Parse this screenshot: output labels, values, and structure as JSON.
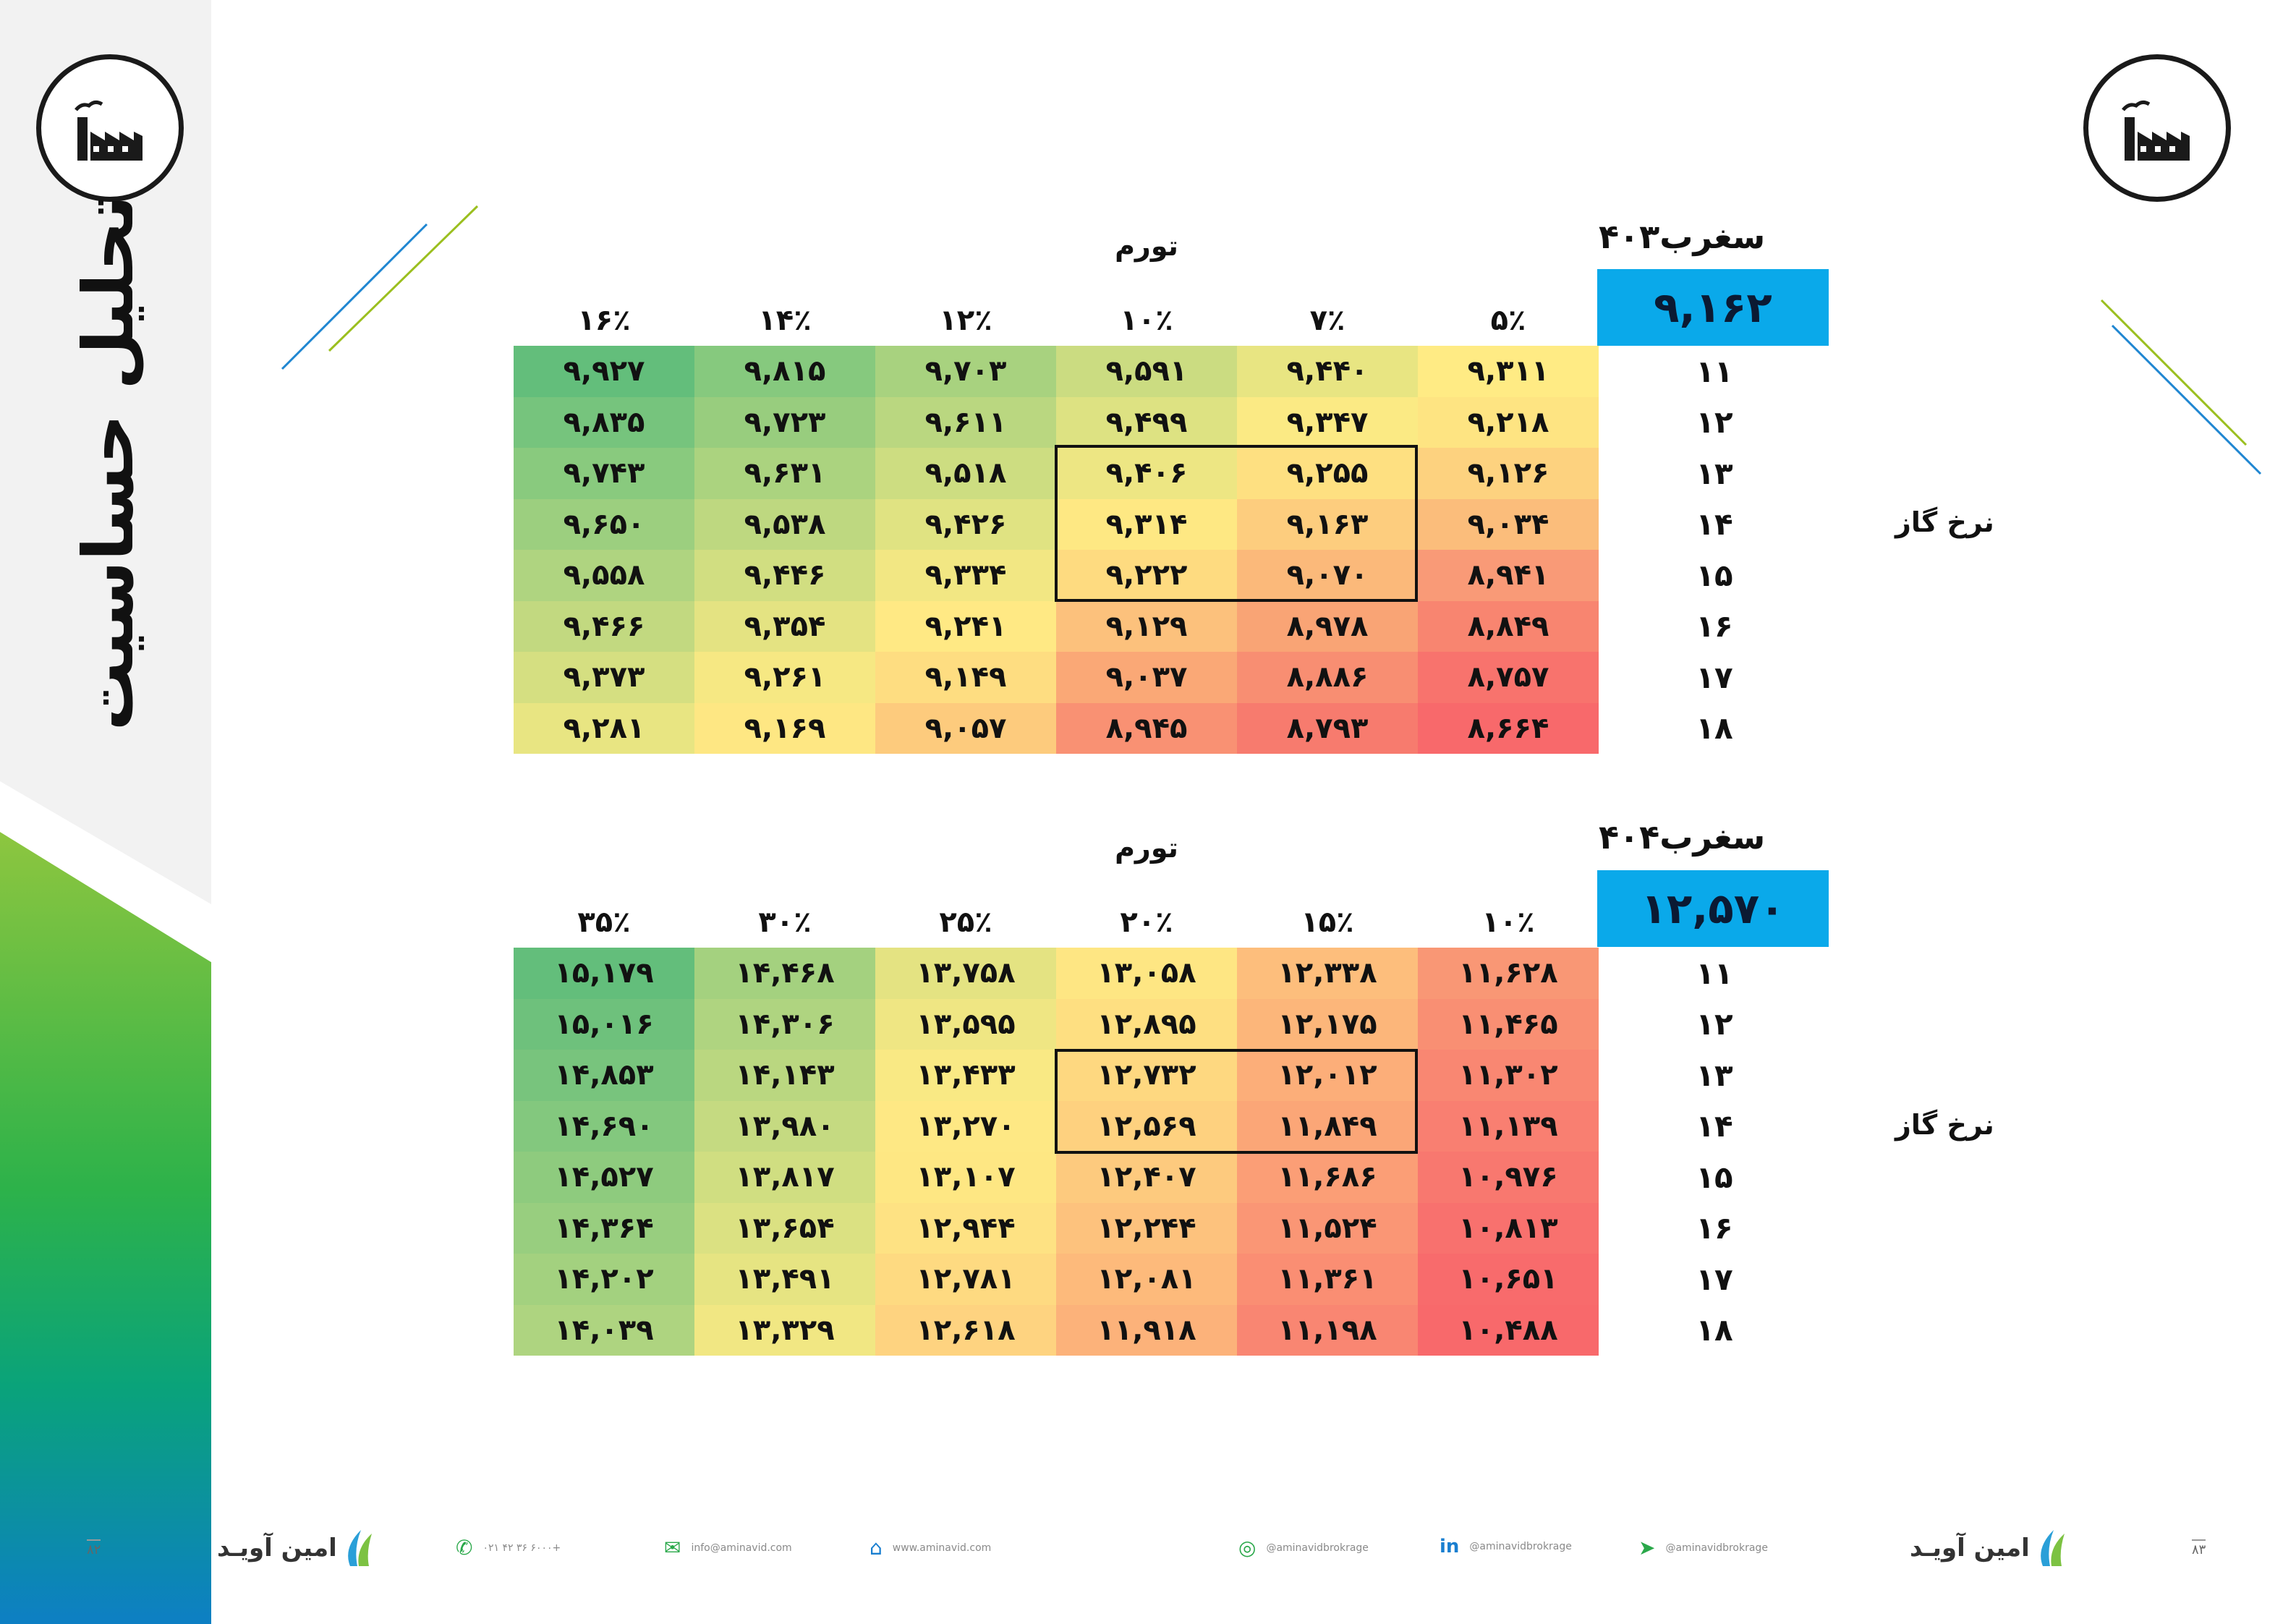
{
  "sidebar": {
    "title": "تحلیل حساسیت"
  },
  "tables": [
    {
      "ticker": "سغرب۴۰۳",
      "price": "۹,۱۶۲",
      "inflation_label": "تورم",
      "row_axis_label": "نرخ گاز",
      "columns": [
        "۱۶٪",
        "۱۴٪",
        "۱۲٪",
        "۱۰٪",
        "۷٪",
        "۵٪"
      ],
      "rows": [
        {
          "label": "۱۱",
          "cells": [
            "۹,۹۲۷",
            "۹,۸۱۵",
            "۹,۷۰۳",
            "۹,۵۹۱",
            "۹,۴۴۰",
            "۹,۳۱۱"
          ]
        },
        {
          "label": "۱۲",
          "cells": [
            "۹,۸۳۵",
            "۹,۷۲۳",
            "۹,۶۱۱",
            "۹,۴۹۹",
            "۹,۳۴۷",
            "۹,۲۱۸"
          ]
        },
        {
          "label": "۱۳",
          "cells": [
            "۹,۷۴۳",
            "۹,۶۳۱",
            "۹,۵۱۸",
            "۹,۴۰۶",
            "۹,۲۵۵",
            "۹,۱۲۶"
          ]
        },
        {
          "label": "۱۴",
          "cells": [
            "۹,۶۵۰",
            "۹,۵۳۸",
            "۹,۴۲۶",
            "۹,۳۱۴",
            "۹,۱۶۳",
            "۹,۰۳۴"
          ]
        },
        {
          "label": "۱۵",
          "cells": [
            "۹,۵۵۸",
            "۹,۴۴۶",
            "۹,۳۳۴",
            "۹,۲۲۲",
            "۹,۰۷۰",
            "۸,۹۴۱"
          ]
        },
        {
          "label": "۱۶",
          "cells": [
            "۹,۴۶۶",
            "۹,۳۵۴",
            "۹,۲۴۱",
            "۹,۱۲۹",
            "۸,۹۷۸",
            "۸,۸۴۹"
          ]
        },
        {
          "label": "۱۷",
          "cells": [
            "۹,۳۷۳",
            "۹,۲۶۱",
            "۹,۱۴۹",
            "۹,۰۳۷",
            "۸,۸۸۶",
            "۸,۷۵۷"
          ]
        },
        {
          "label": "۱۸",
          "cells": [
            "۹,۲۸۱",
            "۹,۱۶۹",
            "۹,۰۵۷",
            "۸,۹۴۵",
            "۸,۷۹۳",
            "۸,۶۶۴"
          ]
        }
      ],
      "colors": [
        [
          "#63be7b",
          "#86c97e",
          "#a8d27f",
          "#cbdc81",
          "#e8e582",
          "#ffeb84"
        ],
        [
          "#76c47d",
          "#98cd7e",
          "#bad780",
          "#dde282",
          "#fbea84",
          "#fee482"
        ],
        [
          "#89ca7e",
          "#abd37f",
          "#cddd81",
          "#ede683",
          "#fee081",
          "#fdd27f"
        ],
        [
          "#9ccf7f",
          "#bed880",
          "#e0e382",
          "#fee883",
          "#fdcd7e",
          "#fbbd7b"
        ],
        [
          "#afd480",
          "#d1de81",
          "#f2e783",
          "#fedb80",
          "#fbb97a",
          "#f99a77"
        ],
        [
          "#c2d980",
          "#e4e382",
          "#ffe984",
          "#fcc17c",
          "#f9a475",
          "#f88570"
        ],
        [
          "#d5df81",
          "#f6e883",
          "#fedd81",
          "#faa876",
          "#f88e72",
          "#f8736d"
        ],
        [
          "#e8e582",
          "#fee783",
          "#fdcb7d",
          "#f99173",
          "#f77b6e",
          "#f8696b"
        ]
      ]
    },
    {
      "ticker": "سغرب۴۰۴",
      "price": "۱۲,۵۷۰",
      "inflation_label": "تورم",
      "row_axis_label": "نرخ گاز",
      "columns": [
        "۳۵٪",
        "۳۰٪",
        "۲۵٪",
        "۲۰٪",
        "۱۵٪",
        "۱۰٪"
      ],
      "rows": [
        {
          "label": "۱۱",
          "cells": [
            "۱۵,۱۷۹",
            "۱۴,۴۶۸",
            "۱۳,۷۵۸",
            "۱۳,۰۵۸",
            "۱۲,۳۳۸",
            "۱۱,۶۲۸"
          ]
        },
        {
          "label": "۱۲",
          "cells": [
            "۱۵,۰۱۶",
            "۱۴,۳۰۶",
            "۱۳,۵۹۵",
            "۱۲,۸۹۵",
            "۱۲,۱۷۵",
            "۱۱,۴۶۵"
          ]
        },
        {
          "label": "۱۳",
          "cells": [
            "۱۴,۸۵۳",
            "۱۴,۱۴۳",
            "۱۳,۴۳۳",
            "۱۲,۷۳۲",
            "۱۲,۰۱۲",
            "۱۱,۳۰۲"
          ]
        },
        {
          "label": "۱۴",
          "cells": [
            "۱۴,۶۹۰",
            "۱۳,۹۸۰",
            "۱۳,۲۷۰",
            "۱۲,۵۶۹",
            "۱۱,۸۴۹",
            "۱۱,۱۳۹"
          ]
        },
        {
          "label": "۱۵",
          "cells": [
            "۱۴,۵۲۷",
            "۱۳,۸۱۷",
            "۱۳,۱۰۷",
            "۱۲,۴۰۷",
            "۱۱,۶۸۶",
            "۱۰,۹۷۶"
          ]
        },
        {
          "label": "۱۶",
          "cells": [
            "۱۴,۳۶۴",
            "۱۳,۶۵۴",
            "۱۲,۹۴۴",
            "۱۲,۲۴۴",
            "۱۱,۵۲۴",
            "۱۰,۸۱۳"
          ]
        },
        {
          "label": "۱۷",
          "cells": [
            "۱۴,۲۰۲",
            "۱۳,۴۹۱",
            "۱۲,۷۸۱",
            "۱۲,۰۸۱",
            "۱۱,۳۶۱",
            "۱۰,۶۵۱"
          ]
        },
        {
          "label": "۱۸",
          "cells": [
            "۱۴,۰۳۹",
            "۱۳,۳۲۹",
            "۱۲,۶۱۸",
            "۱۱,۹۱۸",
            "۱۱,۱۹۸",
            "۱۰,۴۸۸"
          ]
        }
      ],
      "colors": [
        [
          "#63be7b",
          "#a4d17f",
          "#e4e382",
          "#fee683",
          "#fdbe7c",
          "#f99775"
        ],
        [
          "#6ec17c",
          "#afd480",
          "#efe683",
          "#fedf81",
          "#fcb67a",
          "#f98f73"
        ],
        [
          "#78c47d",
          "#bad780",
          "#f9e984",
          "#fed880",
          "#fcae79",
          "#f98772"
        ],
        [
          "#83c87e",
          "#c5da81",
          "#fee884",
          "#fed17f",
          "#fba677",
          "#f97f71"
        ],
        [
          "#8ecb7e",
          "#d0de81",
          "#fee783",
          "#fdca7e",
          "#fb9e76",
          "#f8786f"
        ],
        [
          "#98ce7f",
          "#dbe182",
          "#fee283",
          "#fdc27d",
          "#fa9675",
          "#f8716e"
        ],
        [
          "#a3d17f",
          "#e6e482",
          "#feda81",
          "#fdba7b",
          "#fa8e73",
          "#f86b6c"
        ],
        [
          "#aed480",
          "#f1e783",
          "#fed380",
          "#fcb27a",
          "#f98672",
          "#f8696b"
        ]
      ]
    }
  ],
  "footer": {
    "phone": "۰۲۱ ۴۲ ۳۶ ۶۰۰۰+",
    "email": "info@aminavid.com",
    "web": "www.aminavid.com",
    "instagram": "@aminavidbrokrage",
    "linkedin": "@aminavidbrokrage",
    "telegram": "@aminavidbrokrage",
    "brand": "امین آویـد",
    "page_left": "۸۲",
    "page_right": "۸۳"
  }
}
